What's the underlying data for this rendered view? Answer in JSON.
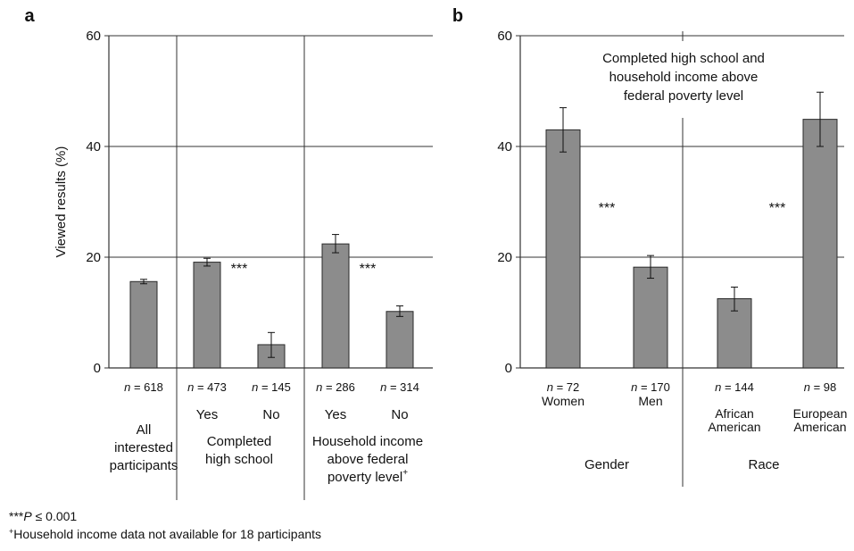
{
  "chart_data": [
    {
      "panel": "a",
      "type": "bar",
      "ylabel": "Viewed results (%)",
      "ylim": [
        0,
        60
      ],
      "yticks": [
        "0",
        "20",
        "40",
        "60"
      ],
      "grid": true,
      "groups": [
        {
          "lines": [
            "All",
            "interested",
            "participants"
          ]
        },
        {
          "lines": [
            "Completed",
            "high school"
          ]
        },
        {
          "lines": [
            "Household income",
            "above federal",
            "poverty level"
          ],
          "suffix_sup": "+"
        }
      ],
      "categories": [
        "",
        "Yes",
        "No",
        "Yes",
        "No"
      ],
      "n_labels": [
        "n = 618",
        "n = 473",
        "n = 145",
        "n = 286",
        "n = 314"
      ],
      "values": [
        15.6,
        19.1,
        4.2,
        22.4,
        10.2
      ],
      "err_low": [
        15.2,
        18.4,
        1.9,
        20.8,
        9.3
      ],
      "err_high": [
        16.0,
        19.8,
        6.4,
        24.1,
        11.2
      ],
      "significance": [
        {
          "between": [
            1,
            2
          ],
          "label": "***",
          "y": 19
        },
        {
          "between": [
            3,
            4
          ],
          "label": "***",
          "y": 19
        }
      ]
    },
    {
      "panel": "b",
      "type": "bar",
      "title": "Completed high school and household income above federal poverty level",
      "title_lines": [
        "Completed high school and",
        "household income above",
        "federal poverty level"
      ],
      "ylim": [
        0,
        60
      ],
      "yticks": [
        "0",
        "20",
        "40",
        "60"
      ],
      "grid": true,
      "groups": [
        {
          "lines": [
            "Gender"
          ]
        },
        {
          "lines": [
            "Race"
          ]
        }
      ],
      "categories": [
        [
          "Women"
        ],
        [
          "Men"
        ],
        [
          "African",
          "American"
        ],
        [
          "European",
          "American"
        ]
      ],
      "n_labels": [
        "n = 72",
        "n = 170",
        "n = 144",
        "n = 98"
      ],
      "values": [
        43.0,
        18.2,
        12.5,
        44.9
      ],
      "err_low": [
        39.0,
        16.2,
        10.3,
        40.0
      ],
      "err_high": [
        47.0,
        20.3,
        14.6,
        49.8
      ],
      "significance": [
        {
          "between": [
            0,
            1
          ],
          "label": "***",
          "y": 30
        },
        {
          "between": [
            2,
            3
          ],
          "label": "***",
          "y": 30
        }
      ]
    }
  ],
  "footnotes": {
    "sig_p": "P",
    "sig_rest": " ≤ 0.001",
    "sig_prefix": "***",
    "plus_mark": "+",
    "plus_text": "Household income data not available for 18 participants"
  },
  "colors": {
    "bar": "#8c8c8c",
    "bar_stroke": "#2a2a2a",
    "axis": "#333333",
    "grid": "#333333"
  }
}
